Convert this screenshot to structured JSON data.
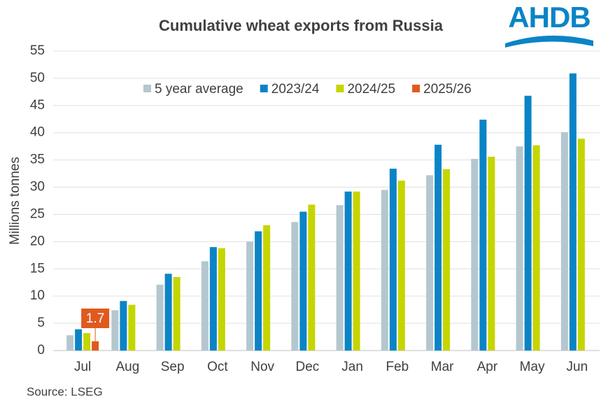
{
  "chart_data": {
    "type": "bar",
    "title": "Cumulative wheat exports from Russia",
    "logo": "AHDB",
    "source": "Source: LSEG",
    "y_label": "Millions tonnes",
    "categories": [
      "Jul",
      "Aug",
      "Sep",
      "Oct",
      "Nov",
      "Dec",
      "Jan",
      "Feb",
      "Mar",
      "Apr",
      "May",
      "Jun"
    ],
    "series": [
      {
        "name": "5 year average",
        "color": "#b4c7cf",
        "values": [
          2.8,
          7.4,
          12.1,
          16.4,
          20.0,
          23.6,
          26.7,
          29.5,
          32.2,
          35.2,
          37.5,
          40.1
        ]
      },
      {
        "name": "2023/24",
        "color": "#0b84c6",
        "values": [
          3.9,
          9.1,
          14.1,
          19.0,
          21.9,
          25.5,
          29.2,
          33.4,
          37.8,
          42.4,
          46.8,
          50.9
        ]
      },
      {
        "name": "2024/25",
        "color": "#c5d500",
        "values": [
          3.2,
          8.4,
          13.5,
          18.8,
          23.0,
          26.8,
          29.2,
          31.2,
          33.3,
          35.6,
          37.7,
          38.9
        ]
      },
      {
        "name": "2025/26",
        "color": "#e05a1e",
        "values": [
          1.7,
          null,
          null,
          null,
          null,
          null,
          null,
          null,
          null,
          null,
          null,
          null
        ],
        "value_labels": [
          "1.7",
          null,
          null,
          null,
          null,
          null,
          null,
          null,
          null,
          null,
          null,
          null
        ]
      }
    ],
    "ylim": [
      0,
      55
    ],
    "yticks": [
      0,
      5,
      10,
      15,
      20,
      25,
      30,
      35,
      40,
      45,
      50,
      55
    ],
    "grid": true
  }
}
